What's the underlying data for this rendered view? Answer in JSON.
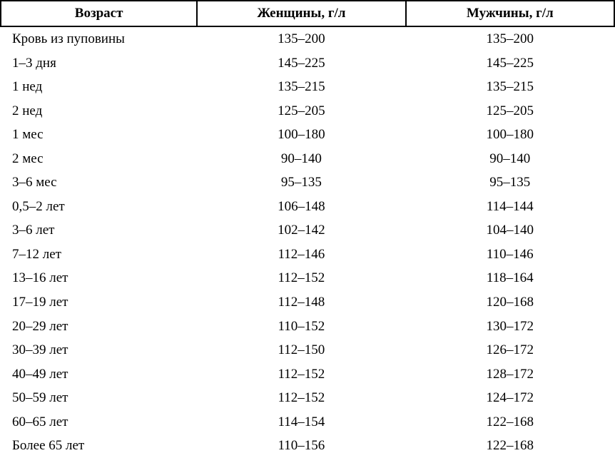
{
  "table": {
    "headers": {
      "age": "Возраст",
      "female": "Женщины, г/л",
      "male": "Мужчины, г/л"
    },
    "rows": [
      {
        "age": "Кровь из пуповины",
        "female": "135–200",
        "male": "135–200"
      },
      {
        "age": "1–3 дня",
        "female": "145–225",
        "male": "145–225"
      },
      {
        "age": "1 нед",
        "female": "135–215",
        "male": "135–215"
      },
      {
        "age": "2 нед",
        "female": "125–205",
        "male": "125–205"
      },
      {
        "age": "1 мес",
        "female": "100–180",
        "male": "100–180"
      },
      {
        "age": "2 мес",
        "female": "90–140",
        "male": "90–140"
      },
      {
        "age": "3–6 мес",
        "female": "95–135",
        "male": "95–135"
      },
      {
        "age": "0,5–2 лет",
        "female": "106–148",
        "male": "114–144"
      },
      {
        "age": "3–6 лет",
        "female": "102–142",
        "male": "104–140"
      },
      {
        "age": "7–12 лет",
        "female": "112–146",
        "male": "110–146"
      },
      {
        "age": "13–16 лет",
        "female": "112–152",
        "male": "118–164"
      },
      {
        "age": "17–19 лет",
        "female": "112–148",
        "male": "120–168"
      },
      {
        "age": "20–29 лет",
        "female": "110–152",
        "male": "130–172"
      },
      {
        "age": "30–39 лет",
        "female": "112–150",
        "male": "126–172"
      },
      {
        "age": "40–49 лет",
        "female": "112–152",
        "male": "128–172"
      },
      {
        "age": "50–59 лет",
        "female": "112–152",
        "male": "124–172"
      },
      {
        "age": "60–65 лет",
        "female": "114–154",
        "male": "122–168"
      },
      {
        "age": "Более 65 лет",
        "female": "110–156",
        "male": "122–168"
      }
    ]
  },
  "styling": {
    "font_family": "Times New Roman",
    "header_font_size_pt": 14,
    "body_font_size_pt": 14,
    "header_font_weight": "bold",
    "border_color": "#000000",
    "background_color": "#ffffff",
    "text_color": "#000000",
    "col_widths_pct": [
      32,
      34,
      34
    ]
  }
}
